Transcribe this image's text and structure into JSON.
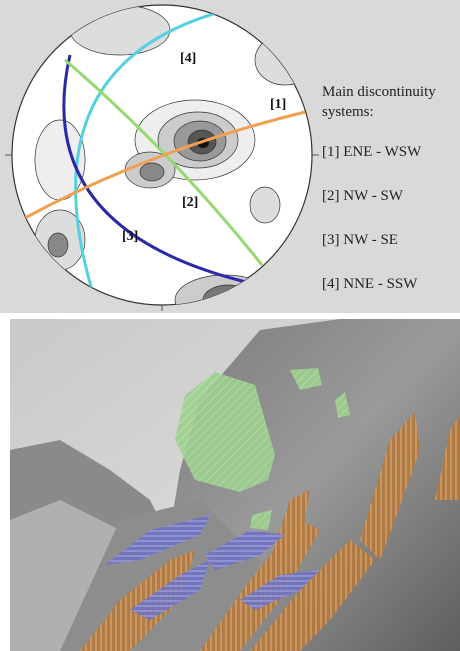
{
  "stereonet": {
    "labels": [
      "[4]",
      "[1]",
      "[2]",
      "[3]"
    ]
  },
  "legend": {
    "title": "Main discontinuity systems:",
    "items": [
      "[1] ENE - WSW",
      "[2] NW - SW",
      "[3] NW - SE",
      "[4] NNE - SSW"
    ]
  }
}
